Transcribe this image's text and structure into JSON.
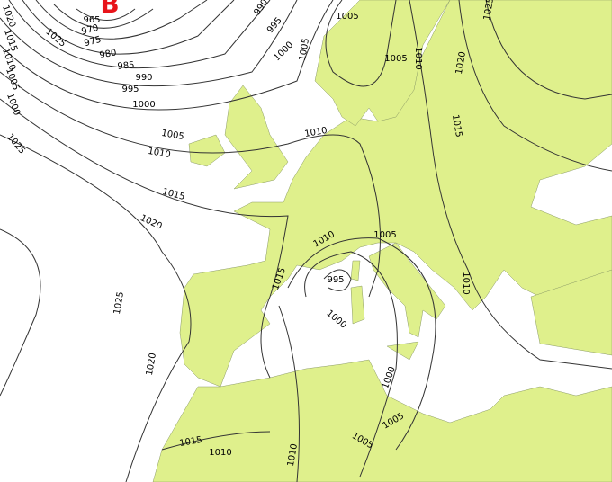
{
  "marker": "B",
  "isobar_labels": [
    "965",
    "970",
    "975",
    "980",
    "985",
    "990",
    "995",
    "1000",
    "1005",
    "1010",
    "1015",
    "1020",
    "1025",
    "1000",
    "1005",
    "1010",
    "1015",
    "1020",
    "1025",
    "990",
    "995",
    "1000",
    "1005",
    "1005",
    "1005",
    "1010",
    "1020",
    "1025",
    "1015",
    "1010",
    "1005",
    "1015",
    "995",
    "1000",
    "1000",
    "1005",
    "1005",
    "1010",
    "1010",
    "1015",
    "1010",
    "1010",
    "1020",
    "1025"
  ]
}
